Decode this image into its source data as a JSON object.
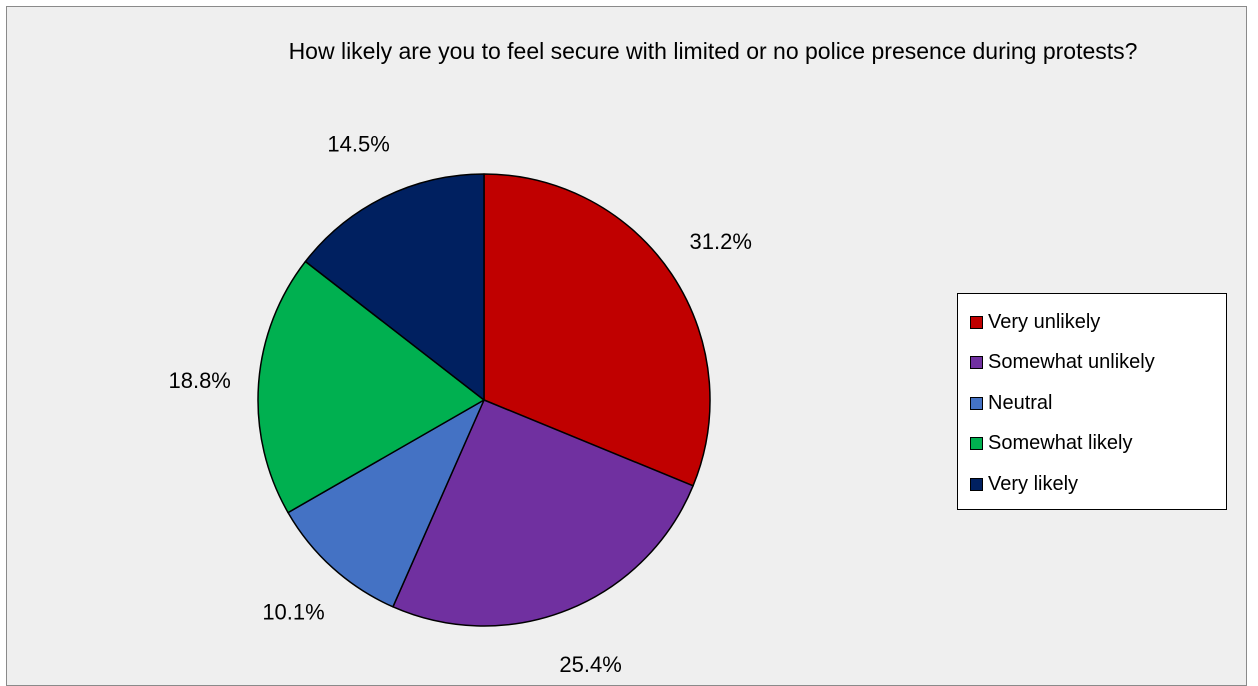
{
  "chart_data": {
    "type": "pie",
    "title": "How likely are you to feel secure with limited or no police presence during protests?",
    "start_angle_deg": 0,
    "direction": "clockwise",
    "legend_position": "right",
    "slices": [
      {
        "label": "Very unlikely",
        "value": 31.2,
        "display": "31.2%",
        "color": "#c00000"
      },
      {
        "label": "Somewhat unlikely",
        "value": 25.4,
        "display": "25.4%",
        "color": "#7030a0"
      },
      {
        "label": "Neutral",
        "value": 10.1,
        "display": "10.1%",
        "color": "#4472c4"
      },
      {
        "label": "Somewhat likely",
        "value": 18.8,
        "display": "18.8%",
        "color": "#00b050"
      },
      {
        "label": "Very likely",
        "value": 14.5,
        "display": "14.5%",
        "color": "#002060"
      }
    ]
  }
}
